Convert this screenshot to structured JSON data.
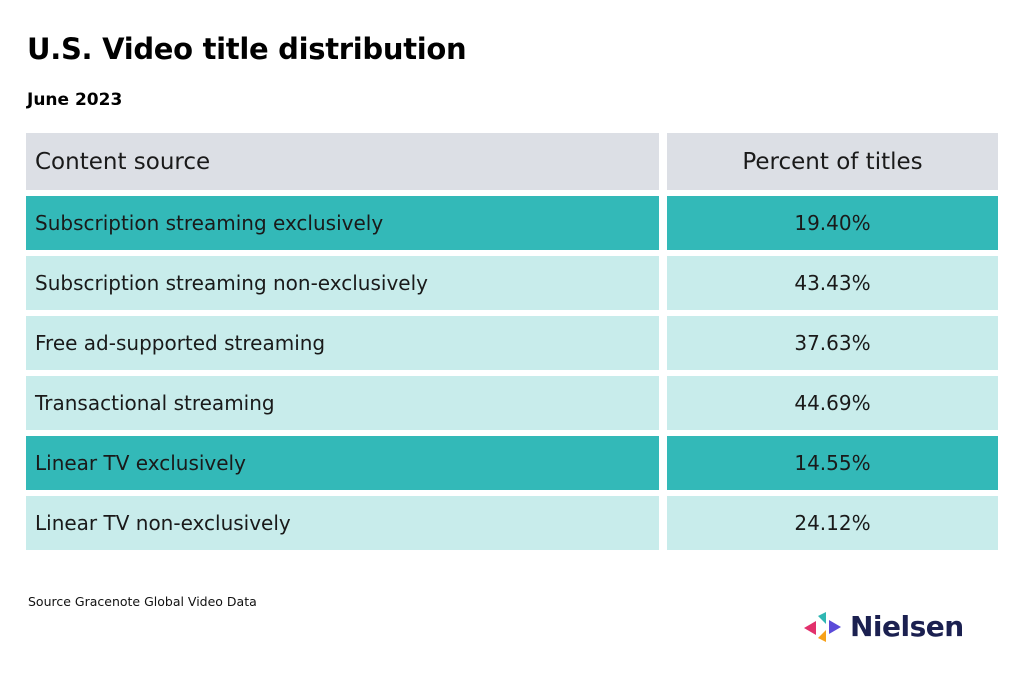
{
  "title": "U.S. Video title distribution",
  "subtitle": "June 2023",
  "chart_data": {
    "type": "table",
    "columns": [
      "Content source",
      "Percent of titles"
    ],
    "rows": [
      {
        "source": "Subscription streaming exclusively",
        "percent": "19.40%",
        "highlight": true
      },
      {
        "source": "Subscription streaming non-exclusively",
        "percent": "43.43%",
        "highlight": false
      },
      {
        "source": "Free ad-supported streaming",
        "percent": "37.63%",
        "highlight": false
      },
      {
        "source": "Transactional streaming",
        "percent": "44.69%",
        "highlight": false
      },
      {
        "source": "Linear TV exclusively",
        "percent": "14.55%",
        "highlight": true
      },
      {
        "source": "Linear TV non-exclusively",
        "percent": "24.12%",
        "highlight": false
      }
    ],
    "colors": {
      "header": "#dcdfe5",
      "highlight": "#33b9b8",
      "light": "#c8eceb"
    }
  },
  "source_note": "Source Gracenote Global Video Data",
  "logo": {
    "text": "Nielsen",
    "icon": "nielsen-arrows-icon"
  }
}
